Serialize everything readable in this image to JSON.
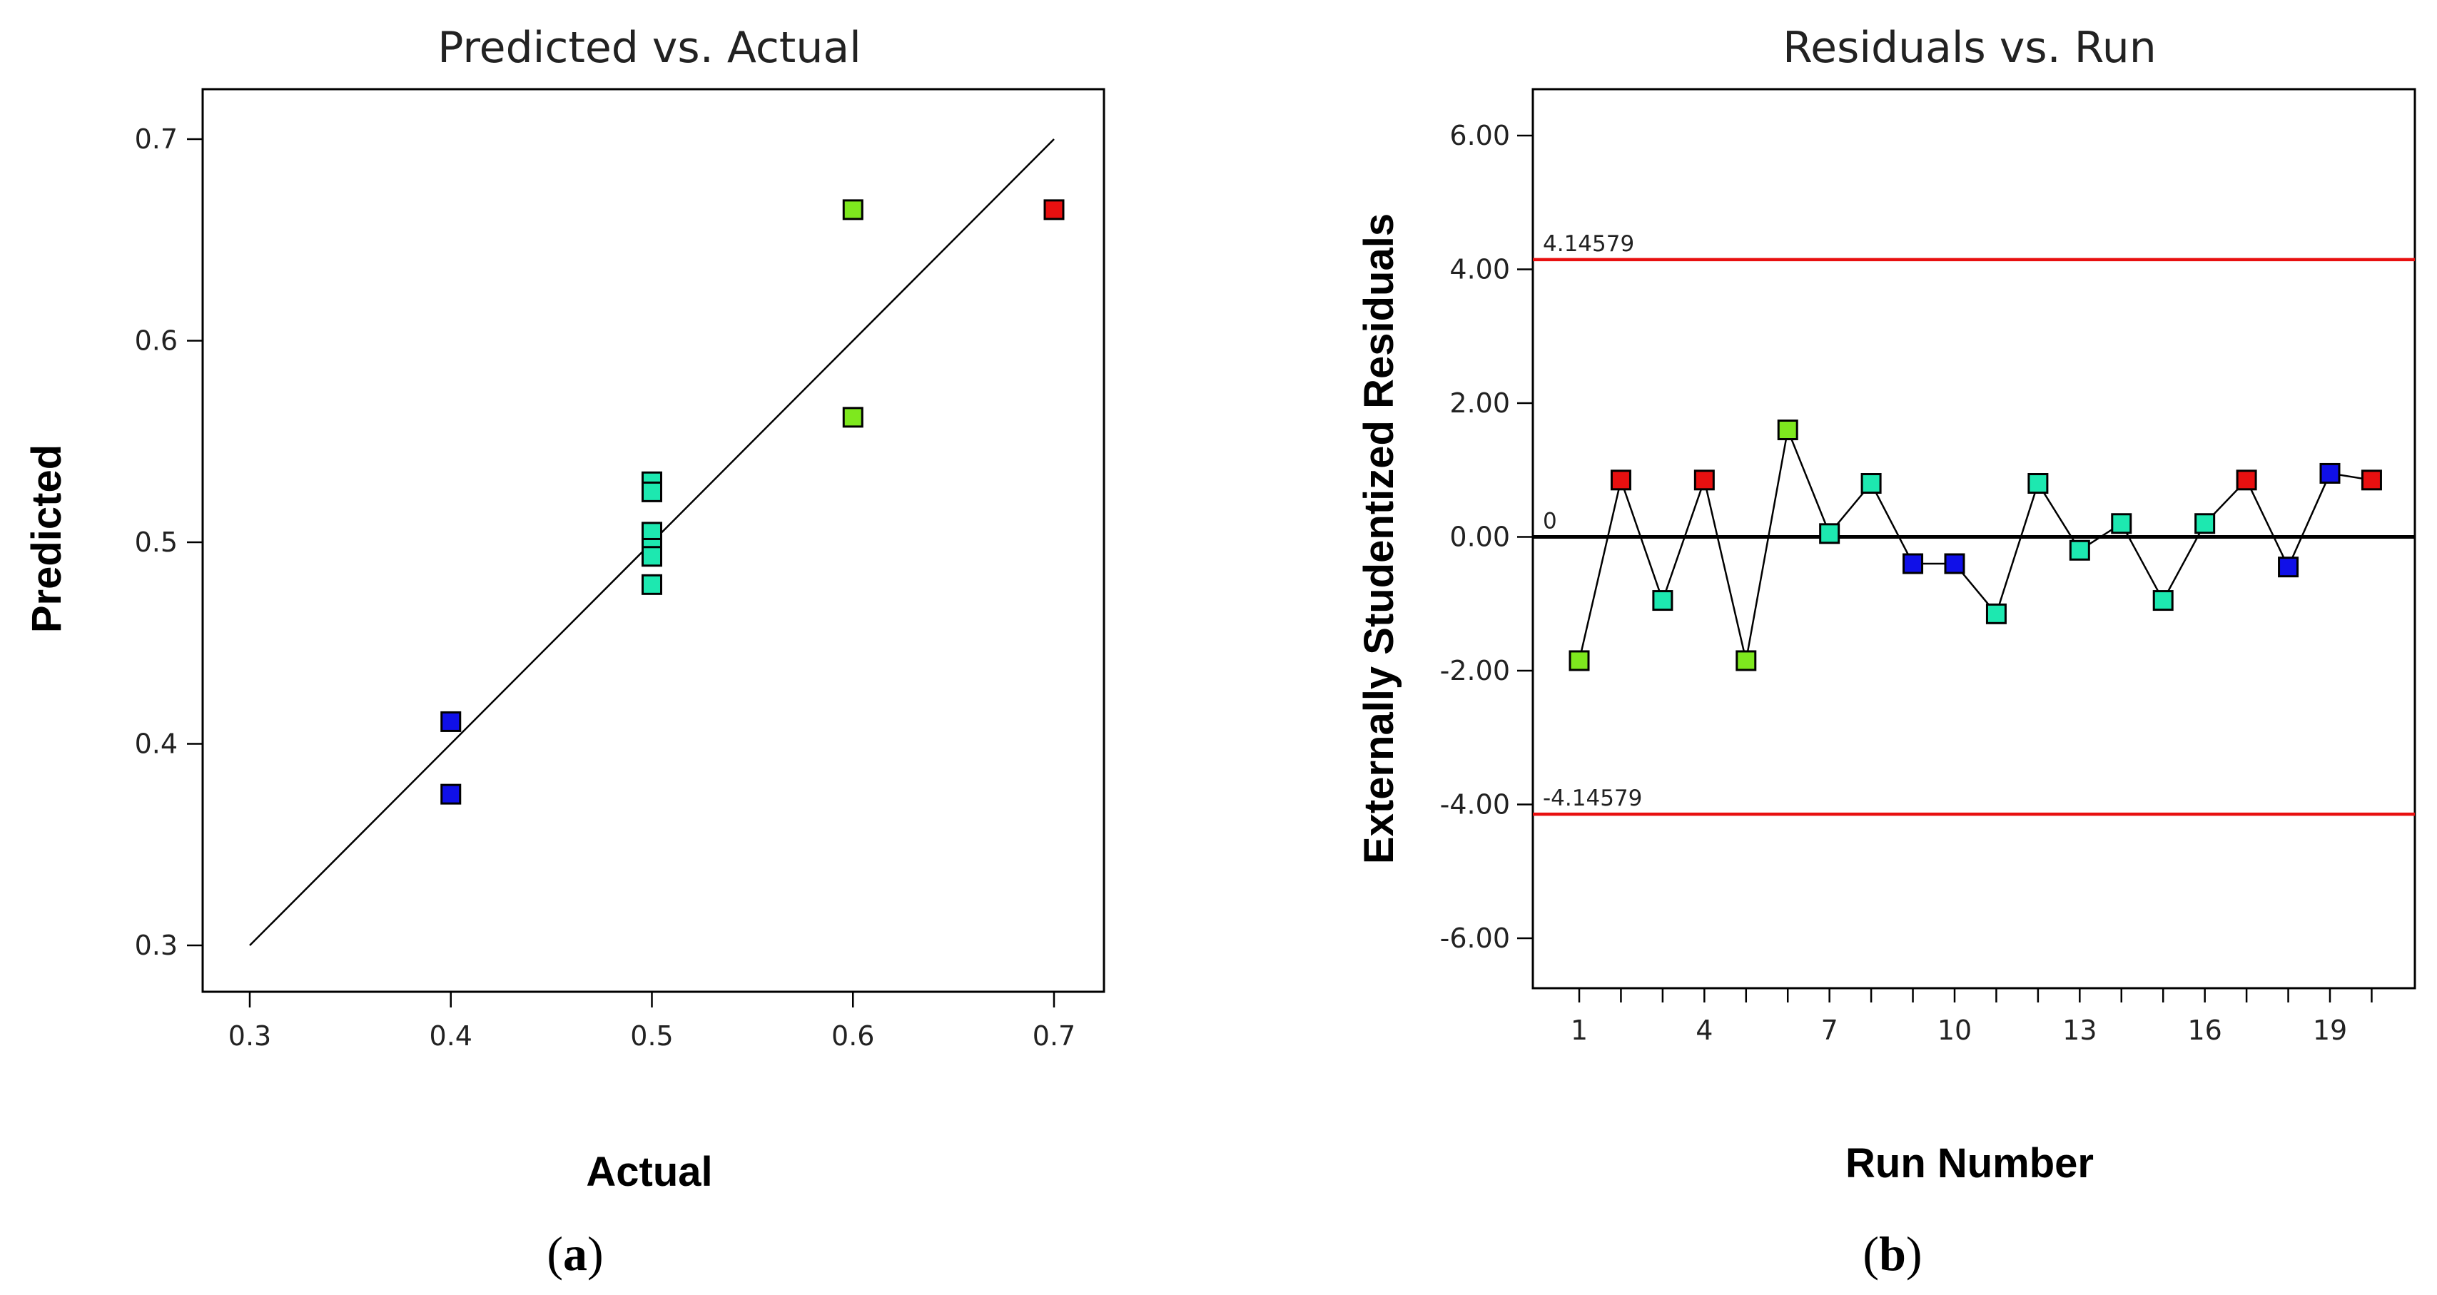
{
  "panels": {
    "a": {
      "label_open": "(",
      "label_letter": "a",
      "label_close": ")"
    },
    "b": {
      "label_open": "(",
      "label_letter": "b",
      "label_close": ")"
    }
  },
  "chart_data": [
    {
      "type": "scatter",
      "title": "Predicted vs. Actual",
      "xlabel": "Actual",
      "ylabel": "Predicted",
      "xlim": [
        0.3,
        0.7
      ],
      "ylim": [
        0.3,
        0.7
      ],
      "xticks": [
        "0.3",
        "0.4",
        "0.5",
        "0.6",
        "0.7"
      ],
      "yticks": [
        "0.3",
        "0.4",
        "0.5",
        "0.6",
        "0.7"
      ],
      "grid": false,
      "reference_line": {
        "from": [
          0.3,
          0.3
        ],
        "to": [
          0.7,
          0.7
        ]
      },
      "points": [
        {
          "x": 0.4,
          "y": 0.411,
          "color": "#1010e8"
        },
        {
          "x": 0.4,
          "y": 0.375,
          "color": "#1010e8"
        },
        {
          "x": 0.5,
          "y": 0.53,
          "color": "#1de8b0"
        },
        {
          "x": 0.5,
          "y": 0.525,
          "color": "#1de8b0"
        },
        {
          "x": 0.5,
          "y": 0.505,
          "color": "#1de8b0"
        },
        {
          "x": 0.5,
          "y": 0.497,
          "color": "#1de8b0"
        },
        {
          "x": 0.5,
          "y": 0.493,
          "color": "#1de8b0"
        },
        {
          "x": 0.5,
          "y": 0.479,
          "color": "#1de8b0"
        },
        {
          "x": 0.6,
          "y": 0.665,
          "color": "#7ee81e"
        },
        {
          "x": 0.6,
          "y": 0.562,
          "color": "#7ee81e"
        },
        {
          "x": 0.7,
          "y": 0.665,
          "color": "#e81010"
        }
      ]
    },
    {
      "type": "line",
      "title": "Residuals vs. Run",
      "xlabel": "Run Number",
      "ylabel": "Externally Studentized Residuals",
      "xlim": [
        0,
        21
      ],
      "ylim": [
        -6.6,
        6.6
      ],
      "xticks": [
        "1",
        "4",
        "7",
        "10",
        "13",
        "16",
        "19"
      ],
      "yticks": [
        "6.00",
        "4.00",
        "2.00",
        "0.00",
        "-2.00",
        "-4.00",
        "-6.00"
      ],
      "grid": false,
      "reference_lines": [
        {
          "value": 4.14579,
          "label": "4.14579",
          "color": "#e81010"
        },
        {
          "value": 0,
          "label": "0",
          "color": "#000000"
        },
        {
          "value": -4.14579,
          "label": "-4.14579",
          "color": "#e81010"
        }
      ],
      "x": [
        1,
        2,
        3,
        4,
        5,
        6,
        7,
        8,
        9,
        10,
        11,
        12,
        13,
        14,
        15,
        16,
        17,
        18,
        19,
        20
      ],
      "y": [
        -1.85,
        0.85,
        -0.95,
        0.85,
        -1.85,
        1.6,
        0.05,
        0.8,
        -0.4,
        -0.4,
        -1.15,
        0.8,
        -0.2,
        0.2,
        -0.95,
        0.2,
        0.85,
        -0.45,
        0.95,
        0.85
      ],
      "colors": [
        "#7ee81e",
        "#e81010",
        "#1de8b0",
        "#e81010",
        "#7ee81e",
        "#7ee81e",
        "#1de8b0",
        "#1de8b0",
        "#1010e8",
        "#1010e8",
        "#1de8b0",
        "#1de8b0",
        "#1de8b0",
        "#1de8b0",
        "#1de8b0",
        "#1de8b0",
        "#e81010",
        "#1010e8",
        "#1010e8",
        "#e81010"
      ]
    }
  ]
}
